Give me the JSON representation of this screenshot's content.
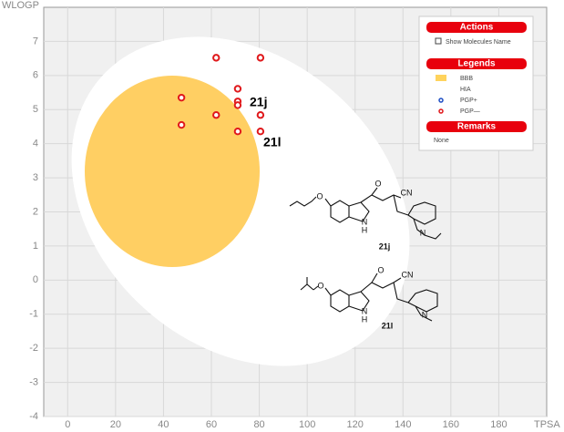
{
  "chart_data": {
    "type": "scatter",
    "x_label": "TPSA",
    "y_label": "WLOGP",
    "xlim": [
      -10,
      200
    ],
    "ylim": [
      -4,
      8
    ],
    "xticks": [
      0,
      20,
      40,
      60,
      80,
      100,
      120,
      140,
      160,
      180
    ],
    "yticks": [
      -4,
      -3,
      -2,
      -1,
      0,
      1,
      2,
      3,
      4,
      5,
      6,
      7
    ],
    "grid": true,
    "series": [
      {
        "name": "PGP—",
        "color": "#e0191c",
        "x": [
          62,
          80.5,
          47.5,
          71,
          71,
          71,
          62,
          80.5,
          47.5,
          71,
          80.5
        ],
        "values": [
          6.52,
          6.52,
          5.35,
          5.61,
          5.24,
          5.13,
          4.84,
          4.84,
          4.55,
          4.36,
          4.36
        ]
      }
    ],
    "annotations": [
      "21j",
      "21l"
    ]
  },
  "panel": {
    "actions": "Actions",
    "show_names": "Show Molecules Name",
    "legends": "Legends",
    "items": [
      {
        "name": "BBB",
        "color": "#ffd35c"
      },
      {
        "name": "HIA"
      },
      {
        "name": "PGP+",
        "color": "#1f4fc4"
      }
    ],
    "remarks": "Remarks",
    "remarks_text": "None"
  },
  "structures": [
    {
      "label": "21j",
      "atoms": [
        "O",
        "O",
        "CN",
        "N",
        "H",
        "N"
      ]
    },
    {
      "label": "21l",
      "atoms": [
        "O",
        "O",
        "CN",
        "N",
        "H",
        "N"
      ]
    }
  ]
}
